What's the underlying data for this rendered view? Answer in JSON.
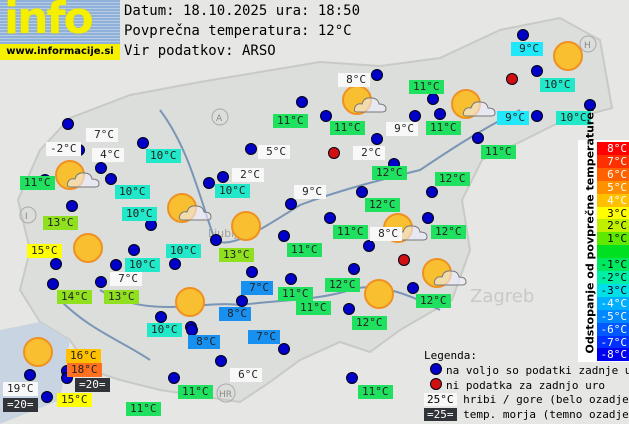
{
  "logo": {
    "text": "info",
    "url": "www.informacije.si"
  },
  "header": {
    "date_line": "Datum: 18.10.2025 ura: 18:50",
    "avg_line": "Povprečna temperatura: 12°C",
    "source_line": "Vir podatkov: ARSO"
  },
  "colors": {
    "mountain": "#f8f8f8",
    "sea": "#303338",
    "green": "#20e060",
    "yellowgreen": "#90e020",
    "yellow": "#ffff00",
    "orange": "#ffc000",
    "redorange": "#ff7020",
    "cyan": "#20e8c8",
    "lightcyan": "#20e8f8",
    "blue": "#1890f0",
    "dot_ok": "#0000c8",
    "dot_missing": "#d01010"
  },
  "labels": [
    {
      "text": "7°C",
      "c": "mountain"
    },
    {
      "text": "-2°C",
      "c": "mountain"
    },
    {
      "text": "4°C",
      "c": "mountain"
    },
    {
      "text": "11°C",
      "c": "green"
    },
    {
      "text": "10°C",
      "c": "cyan"
    },
    {
      "text": "10°C",
      "c": "cyan"
    },
    {
      "text": "10°C",
      "c": "cyan"
    },
    {
      "text": "13°C",
      "c": "yellowgreen"
    },
    {
      "text": "15°C",
      "c": "yellow"
    },
    {
      "text": "10°C",
      "c": "cyan"
    },
    {
      "text": "10°C",
      "c": "cyan"
    },
    {
      "text": "7°C",
      "c": "mountain"
    },
    {
      "text": "14°C",
      "c": "yellowgreen"
    },
    {
      "text": "13°C",
      "c": "yellowgreen"
    },
    {
      "text": "13°C",
      "c": "yellowgreen"
    },
    {
      "text": "5°C",
      "c": "mountain"
    },
    {
      "text": "2°C",
      "c": "mountain"
    },
    {
      "text": "10°C",
      "c": "cyan"
    },
    {
      "text": "9°C",
      "c": "mountain"
    },
    {
      "text": "7°C",
      "c": "blue"
    },
    {
      "text": "11°C",
      "c": "green"
    },
    {
      "text": "8°C",
      "c": "blue"
    },
    {
      "text": "10°C",
      "c": "cyan"
    },
    {
      "text": "8°C",
      "c": "blue"
    },
    {
      "text": "7°C",
      "c": "blue"
    },
    {
      "text": "16°C",
      "c": "orange"
    },
    {
      "text": "18°C",
      "c": "redorange"
    },
    {
      "text": "=20=",
      "c": "sea"
    },
    {
      "text": "19°C",
      "c": "mountain"
    },
    {
      "text": "=20=",
      "c": "sea"
    },
    {
      "text": "15°C",
      "c": "yellow"
    },
    {
      "text": "11°C",
      "c": "green"
    },
    {
      "text": "6°C",
      "c": "mountain"
    },
    {
      "text": "11°C",
      "c": "green"
    },
    {
      "text": "9°C",
      "c": "lightcyan"
    },
    {
      "text": "8°C",
      "c": "mountain"
    },
    {
      "text": "11°C",
      "c": "green"
    },
    {
      "text": "10°C",
      "c": "cyan"
    },
    {
      "text": "11°C",
      "c": "green"
    },
    {
      "text": "11°C",
      "c": "green"
    },
    {
      "text": "9°C",
      "c": "mountain"
    },
    {
      "text": "11°C",
      "c": "green"
    },
    {
      "text": "9°C",
      "c": "lightcyan"
    },
    {
      "text": "10°C",
      "c": "cyan"
    },
    {
      "text": "11°C",
      "c": "green"
    },
    {
      "text": "2°C",
      "c": "mountain"
    },
    {
      "text": "12°C",
      "c": "green"
    },
    {
      "text": "12°C",
      "c": "green"
    },
    {
      "text": "12°C",
      "c": "green"
    },
    {
      "text": "11°C",
      "c": "green"
    },
    {
      "text": "8°C",
      "c": "mountain"
    },
    {
      "text": "12°C",
      "c": "green"
    },
    {
      "text": "11°C",
      "c": "green"
    },
    {
      "text": "12°C",
      "c": "green"
    },
    {
      "text": "11°C",
      "c": "green"
    },
    {
      "text": "12°C",
      "c": "green"
    },
    {
      "text": "12°C",
      "c": "green"
    },
    {
      "text": "11°C",
      "c": "green"
    }
  ],
  "scale": {
    "title": "Odstopanje od povprečne temperature:",
    "bands": [
      {
        "label": "8°C",
        "color": "#ff0000"
      },
      {
        "label": "7°C",
        "color": "#ff3000"
      },
      {
        "label": "6°C",
        "color": "#ff6000"
      },
      {
        "label": "5°C",
        "color": "#ff9000"
      },
      {
        "label": "4°C",
        "color": "#ffc000"
      },
      {
        "label": "3°C",
        "color": "#ffff00"
      },
      {
        "label": "2°C",
        "color": "#c0f000"
      },
      {
        "label": "1°C",
        "color": "#60e800"
      },
      {
        "label": "",
        "color": "#00e020"
      },
      {
        "label": "-1°C",
        "color": "#00e860"
      },
      {
        "label": "-2°C",
        "color": "#00f0a8"
      },
      {
        "label": "-3°C",
        "color": "#00e0e8"
      },
      {
        "label": "-4°C",
        "color": "#00b0ff"
      },
      {
        "label": "-5°C",
        "color": "#0088ff"
      },
      {
        "label": "-6°C",
        "color": "#0058ff"
      },
      {
        "label": "-7°C",
        "color": "#0030ff"
      },
      {
        "label": "-8°C",
        "color": "#0000f0"
      }
    ]
  },
  "legend": {
    "title": "Legenda:",
    "available": "na voljo so podatki zadnje ure",
    "missing": "ni podatka za zadnjo uro",
    "mountain_sample": "25°C",
    "mountain": "hribi / gore (belo ozadje)",
    "sea_sample": "=25=",
    "sea": "temp. morja (temno ozadje)"
  },
  "map_marks": {
    "country_codes": [
      "A",
      "I",
      "H",
      "HR"
    ],
    "cities": [
      "Ljubljana",
      "Zagreb"
    ]
  }
}
